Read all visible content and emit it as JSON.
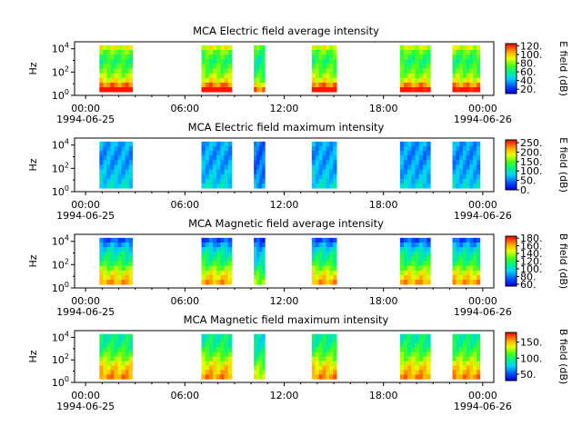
{
  "chart_data": [
    {
      "type": "heatmap",
      "title": "MCA  Electric field average intensity",
      "ylabel": "Hz",
      "y_ticks": [
        "10^0",
        "10^2",
        "10^4"
      ],
      "x_ticks": [
        "00:00",
        "06:00",
        "12:00",
        "18:00",
        "00:00"
      ],
      "x_dates": [
        "1994-06-25",
        "",
        "",
        "",
        "1994-06-26"
      ],
      "xlim": [
        "1994-06-24T23:20",
        "1994-06-26T00:40"
      ],
      "ylim_log10": [
        0,
        4.6
      ],
      "colorbar_label": "E field (dB)",
      "colorbar_ticks": [
        "20.",
        "40.",
        "60.",
        "80.",
        "100.",
        "120."
      ],
      "colorbar_range": [
        10,
        125
      ],
      "profile": [
        0.9,
        0.75,
        0.62,
        0.55,
        0.5,
        0.46,
        0.42,
        0.45,
        0.5,
        0.6
      ],
      "segments": [
        {
          "start": "1994-06-25T00:50",
          "end": "1994-06-25T02:50",
          "level": 0.72
        },
        {
          "start": "1994-06-25T07:00",
          "end": "1994-06-25T08:50",
          "level": 0.72
        },
        {
          "start": "1994-06-25T10:10",
          "end": "1994-06-25T10:50",
          "level": 0.6
        },
        {
          "start": "1994-06-25T13:40",
          "end": "1994-06-25T15:10",
          "level": 0.72
        },
        {
          "start": "1994-06-25T19:00",
          "end": "1994-06-25T20:50",
          "level": 0.7
        },
        {
          "start": "1994-06-25T22:10",
          "end": "1994-06-25T23:50",
          "level": 0.7
        }
      ]
    },
    {
      "type": "heatmap",
      "title": "MCA  Electric field maximum intensity",
      "ylabel": "Hz",
      "y_ticks": [
        "10^0",
        "10^2",
        "10^4"
      ],
      "x_ticks": [
        "00:00",
        "06:00",
        "12:00",
        "18:00",
        "00:00"
      ],
      "x_dates": [
        "1994-06-25",
        "",
        "",
        "",
        "1994-06-26"
      ],
      "xlim": [
        "1994-06-24T23:20",
        "1994-06-26T00:40"
      ],
      "ylim_log10": [
        0,
        4.6
      ],
      "colorbar_label": "E field (dB)",
      "colorbar_ticks": [
        "0.",
        "50.",
        "100.",
        "150.",
        "200.",
        "250."
      ],
      "colorbar_range": [
        0,
        265
      ],
      "profile": [
        0.5,
        0.46,
        0.43,
        0.4,
        0.38,
        0.36,
        0.35,
        0.35,
        0.36,
        0.38
      ],
      "segments": [
        {
          "start": "1994-06-25T00:50",
          "end": "1994-06-25T02:50",
          "level": 0.42
        },
        {
          "start": "1994-06-25T07:00",
          "end": "1994-06-25T08:50",
          "level": 0.42
        },
        {
          "start": "1994-06-25T10:10",
          "end": "1994-06-25T10:50",
          "level": 0.3
        },
        {
          "start": "1994-06-25T13:40",
          "end": "1994-06-25T15:10",
          "level": 0.42
        },
        {
          "start": "1994-06-25T19:00",
          "end": "1994-06-25T20:50",
          "level": 0.4
        },
        {
          "start": "1994-06-25T22:10",
          "end": "1994-06-25T23:50",
          "level": 0.4
        }
      ]
    },
    {
      "type": "heatmap",
      "title": "MCA  Magnetic field average intensity",
      "ylabel": "Hz",
      "y_ticks": [
        "10^0",
        "10^2",
        "10^4"
      ],
      "x_ticks": [
        "00:00",
        "06:00",
        "12:00",
        "18:00",
        "00:00"
      ],
      "x_dates": [
        "1994-06-25",
        "",
        "",
        "",
        "1994-06-26"
      ],
      "xlim": [
        "1994-06-24T23:20",
        "1994-06-26T00:40"
      ],
      "ylim_log10": [
        0,
        4.6
      ],
      "colorbar_label": "B field (dB)",
      "colorbar_ticks": [
        "60.",
        "80.",
        "100.",
        "120.",
        "140.",
        "160.",
        "180."
      ],
      "colorbar_range": [
        55,
        185
      ],
      "profile": [
        0.85,
        0.78,
        0.72,
        0.62,
        0.52,
        0.46,
        0.42,
        0.35,
        0.25,
        0.15
      ],
      "segments": [
        {
          "start": "1994-06-25T00:50",
          "end": "1994-06-25T02:50",
          "level": 0.6
        },
        {
          "start": "1994-06-25T07:00",
          "end": "1994-06-25T08:50",
          "level": 0.6
        },
        {
          "start": "1994-06-25T10:10",
          "end": "1994-06-25T10:50",
          "level": 0.45
        },
        {
          "start": "1994-06-25T13:40",
          "end": "1994-06-25T15:10",
          "level": 0.6
        },
        {
          "start": "1994-06-25T19:00",
          "end": "1994-06-25T20:50",
          "level": 0.6
        },
        {
          "start": "1994-06-25T22:10",
          "end": "1994-06-25T23:50",
          "level": 0.6
        }
      ]
    },
    {
      "type": "heatmap",
      "title": "MCA  Magnetic field maximum intensity",
      "ylabel": "Hz",
      "y_ticks": [
        "10^0",
        "10^2",
        "10^4"
      ],
      "x_ticks": [
        "00:00",
        "06:00",
        "12:00",
        "18:00",
        "00:00"
      ],
      "x_dates": [
        "1994-06-25",
        "",
        "",
        "",
        "1994-06-26"
      ],
      "xlim": [
        "1994-06-24T23:20",
        "1994-06-26T00:40"
      ],
      "ylim_log10": [
        0,
        4.6
      ],
      "colorbar_label": "B field (dB)",
      "colorbar_ticks": [
        "50.",
        "100.",
        "150."
      ],
      "colorbar_range": [
        30,
        180
      ],
      "profile": [
        0.85,
        0.8,
        0.76,
        0.7,
        0.62,
        0.56,
        0.5,
        0.46,
        0.43,
        0.42
      ],
      "segments": [
        {
          "start": "1994-06-25T00:50",
          "end": "1994-06-25T02:50",
          "level": 0.62
        },
        {
          "start": "1994-06-25T07:00",
          "end": "1994-06-25T08:50",
          "level": 0.62
        },
        {
          "start": "1994-06-25T10:10",
          "end": "1994-06-25T10:50",
          "level": 0.5
        },
        {
          "start": "1994-06-25T13:40",
          "end": "1994-06-25T15:10",
          "level": 0.62
        },
        {
          "start": "1994-06-25T19:00",
          "end": "1994-06-25T20:50",
          "level": 0.62
        },
        {
          "start": "1994-06-25T22:10",
          "end": "1994-06-25T23:50",
          "level": 0.62
        }
      ]
    }
  ]
}
